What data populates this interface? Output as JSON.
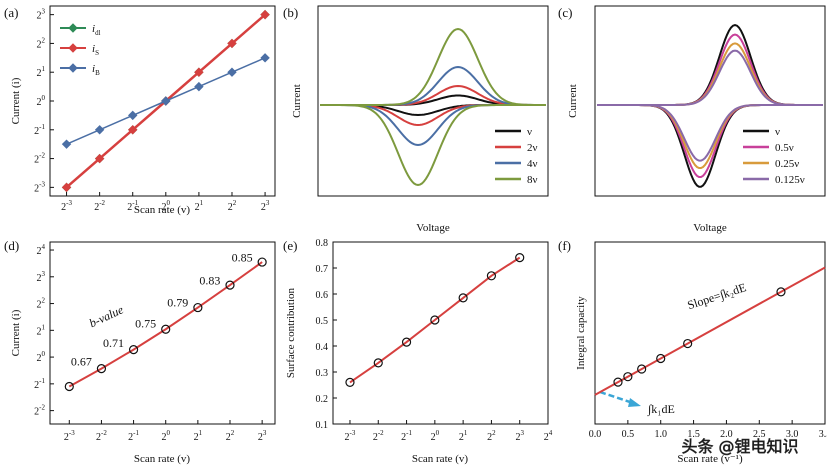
{
  "watermark": "头条 @锂电知识",
  "chart_data": [
    {
      "panel": "(a)",
      "type": "line",
      "xlabel": "Scan rate (v)",
      "ylabel": "Current (i)",
      "x_scale": "log2",
      "y_scale": "log2",
      "x_ticks": [
        {
          "base": "2",
          "exp": "-3"
        },
        {
          "base": "2",
          "exp": "-2"
        },
        {
          "base": "2",
          "exp": "-1"
        },
        {
          "base": "2",
          "exp": "0"
        },
        {
          "base": "2",
          "exp": "1"
        },
        {
          "base": "2",
          "exp": "2"
        },
        {
          "base": "2",
          "exp": "3"
        }
      ],
      "y_ticks": [
        {
          "base": "2",
          "exp": "-3"
        },
        {
          "base": "2",
          "exp": "-2"
        },
        {
          "base": "2",
          "exp": "-1"
        },
        {
          "base": "2",
          "exp": "0"
        },
        {
          "base": "2",
          "exp": "1"
        },
        {
          "base": "2",
          "exp": "2"
        },
        {
          "base": "2",
          "exp": "3"
        }
      ],
      "xlim_log2": [
        -3.5,
        3.3
      ],
      "ylim_log2": [
        -3.3,
        3.3
      ],
      "legend_position": "top-left",
      "series": [
        {
          "name": "i",
          "sub": "dl",
          "color": "#2e8b57",
          "marker": "diamond",
          "x_log2": [
            -3,
            -2,
            -1,
            0,
            1,
            2,
            3
          ],
          "y_log2": [
            -3,
            -2,
            -1,
            0,
            1,
            2,
            3
          ]
        },
        {
          "name": "i",
          "sub": "S",
          "color": "#d6403f",
          "marker": "diamond",
          "x_log2": [
            -3,
            -2,
            -1,
            0,
            1,
            2,
            3
          ],
          "y_log2": [
            -3,
            -2,
            -1,
            0,
            1,
            2,
            3
          ]
        },
        {
          "name": "i",
          "sub": "B",
          "color": "#4b6fa5",
          "marker": "diamond",
          "x_log2": [
            -3,
            -2,
            -1,
            0,
            1,
            2,
            3
          ],
          "y_log2": [
            -1.5,
            -1,
            -0.5,
            0,
            0.5,
            1,
            1.5
          ]
        }
      ]
    },
    {
      "panel": "(b)",
      "type": "line",
      "xlabel": "Voltage",
      "ylabel": "Current",
      "legend_position": "bottom-right",
      "series": [
        {
          "name": "ν",
          "color": "#111111",
          "scale": 1
        },
        {
          "name": "2ν",
          "color": "#d6403f",
          "scale": 2
        },
        {
          "name": "4ν",
          "color": "#4b6fa5",
          "scale": 4
        },
        {
          "name": "8ν",
          "color": "#7d9a3e",
          "scale": 8
        }
      ]
    },
    {
      "panel": "(c)",
      "type": "line",
      "xlabel": "Voltage",
      "ylabel": "Current",
      "legend_position": "bottom-right",
      "series": [
        {
          "name": "ν",
          "color": "#111111",
          "scale": 1
        },
        {
          "name": "0.5ν",
          "color": "#c8409a",
          "scale": 0.88
        },
        {
          "name": "0.25ν",
          "color": "#d89b3c",
          "scale": 0.77
        },
        {
          "name": "0.125ν",
          "color": "#8a6aa8",
          "scale": 0.68
        }
      ]
    },
    {
      "panel": "(d)",
      "type": "line",
      "xlabel": "Scan rate (v)",
      "ylabel": "Current (i)",
      "x_ticks": [
        {
          "base": "2",
          "exp": "-3"
        },
        {
          "base": "2",
          "exp": "-2"
        },
        {
          "base": "2",
          "exp": "-1"
        },
        {
          "base": "2",
          "exp": "0"
        },
        {
          "base": "2",
          "exp": "1"
        },
        {
          "base": "2",
          "exp": "2"
        },
        {
          "base": "2",
          "exp": "3"
        }
      ],
      "y_ticks": [
        {
          "base": "2",
          "exp": "-2"
        },
        {
          "base": "2",
          "exp": "-1"
        },
        {
          "base": "2",
          "exp": "0"
        },
        {
          "base": "2",
          "exp": "1"
        },
        {
          "base": "2",
          "exp": "2"
        },
        {
          "base": "2",
          "exp": "3"
        },
        {
          "base": "2",
          "exp": "4"
        }
      ],
      "xlim_log2": [
        -3.6,
        3.4
      ],
      "ylim_log2": [
        -2.5,
        4.3
      ],
      "x_log2": [
        -3,
        -2,
        -1,
        0,
        1,
        2,
        3
      ],
      "y_log2": [
        -1.1,
        -0.43,
        0.28,
        1.04,
        1.85,
        2.69,
        3.55
      ],
      "line_color": "#d6403f",
      "b_value_label": "b-value",
      "b_values": [
        "0.67",
        "0.71",
        "0.75",
        "0.79",
        "0.83",
        "0.85"
      ]
    },
    {
      "panel": "(e)",
      "type": "line",
      "xlabel": "Scan rate (v)",
      "ylabel": "Surface contribution",
      "x_ticks": [
        {
          "base": "2",
          "exp": "-3"
        },
        {
          "base": "2",
          "exp": "-2"
        },
        {
          "base": "2",
          "exp": "-1"
        },
        {
          "base": "2",
          "exp": "0"
        },
        {
          "base": "2",
          "exp": "1"
        },
        {
          "base": "2",
          "exp": "2"
        },
        {
          "base": "2",
          "exp": "3"
        },
        {
          "base": "2",
          "exp": "4"
        }
      ],
      "y_ticks": [
        "0.1",
        "0.2",
        "0.3",
        "0.4",
        "0.5",
        "0.6",
        "0.7",
        "0.8"
      ],
      "xlim_log2": [
        -3.6,
        4
      ],
      "ylim": [
        0.1,
        0.8
      ],
      "x_log2": [
        -3,
        -2,
        -1,
        0,
        1,
        2,
        3
      ],
      "values": [
        0.26,
        0.335,
        0.415,
        0.5,
        0.585,
        0.67,
        0.74
      ],
      "line_color": "#d6403f"
    },
    {
      "panel": "(f)",
      "type": "scatter",
      "xlabel": "Scan rate (v⁻¹)",
      "ylabel": "Integral capacity",
      "x_ticks": [
        "0.0",
        "0.5",
        "1.0",
        "1.5",
        "2.0",
        "2.5",
        "3.0",
        "3.5"
      ],
      "xlim": [
        0,
        3.5
      ],
      "x": [
        0.35,
        0.5,
        0.71,
        1.0,
        1.41,
        2.83
      ],
      "intercept": 0.16,
      "slope": 0.2,
      "line_color": "#d6403f",
      "slope_label": "Slope=∫k₂dE",
      "intercept_label": "∫k₁dE",
      "arrow_color": "#3ba6d6"
    }
  ]
}
